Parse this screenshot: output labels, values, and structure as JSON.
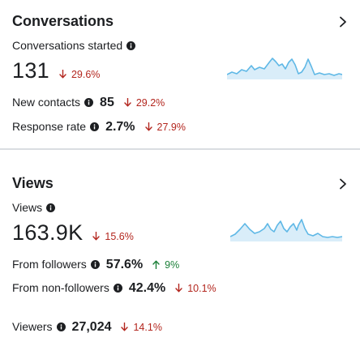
{
  "conversations": {
    "title": "Conversations",
    "primary": {
      "label": "Conversations started",
      "value": "131",
      "change": "29.6%",
      "direction": "down"
    },
    "rows": [
      {
        "label": "New contacts",
        "value": "85",
        "change": "29.2%",
        "direction": "down"
      },
      {
        "label": "Response rate",
        "value": "2.7%",
        "change": "27.9%",
        "direction": "down"
      }
    ]
  },
  "views": {
    "title": "Views",
    "primary": {
      "label": "Views",
      "value": "163.9K",
      "change": "15.6%",
      "direction": "down"
    },
    "rows": [
      {
        "label": "From followers",
        "value": "57.6%",
        "change": "9%",
        "direction": "up"
      },
      {
        "label": "From non-followers",
        "value": "42.4%",
        "change": "10.1%",
        "direction": "down"
      },
      {
        "label": "Viewers",
        "value": "27,024",
        "change": "14.1%",
        "direction": "down"
      }
    ]
  },
  "colors": {
    "text": "#1c1e21",
    "down": "#b3261e",
    "up": "#1a7f37",
    "sparkline_stroke": "#5fb8e6",
    "sparkline_fill": "#cfe9f7",
    "divider": "#dadde1"
  },
  "icons": {
    "chevron": "chevron-right-icon",
    "info": "info-icon",
    "down": "arrow-down-icon",
    "up": "arrow-up-icon"
  }
}
